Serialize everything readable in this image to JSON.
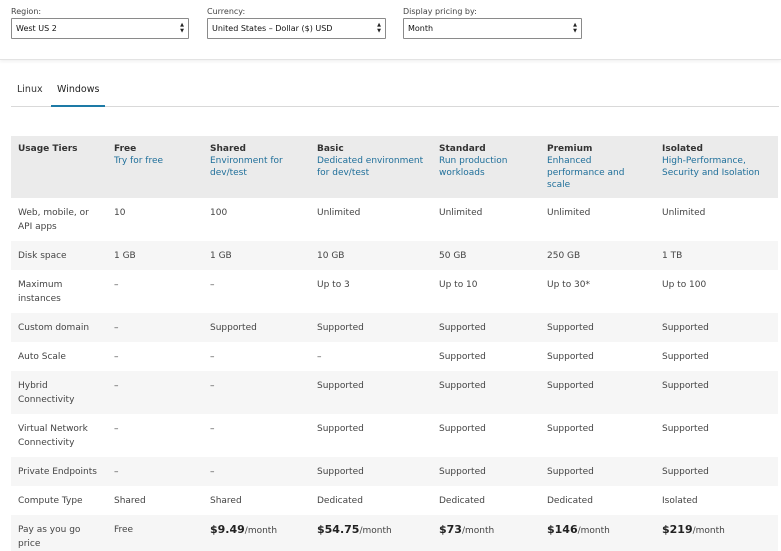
{
  "filters": {
    "region": {
      "label": "Region:",
      "value": "West US 2"
    },
    "currency": {
      "label": "Currency:",
      "value": "United States – Dollar ($) USD"
    },
    "display": {
      "label": "Display pricing by:",
      "value": "Month"
    }
  },
  "tabs": [
    {
      "label": "Linux",
      "active": false
    },
    {
      "label": "Windows",
      "active": true
    }
  ],
  "table": {
    "header": {
      "usage": "Usage Tiers",
      "tiers": [
        {
          "name": "Free",
          "desc": "Try for free"
        },
        {
          "name": "Shared",
          "desc": "Environment for dev/test"
        },
        {
          "name": "Basic",
          "desc": "Dedicated environment for dev/test"
        },
        {
          "name": "Standard",
          "desc": "Run production workloads"
        },
        {
          "name": "Premium",
          "desc": "Enhanced performance and scale"
        },
        {
          "name": "Isolated",
          "desc": "High-Performance, Security and Isolation"
        }
      ]
    },
    "rows": [
      {
        "label": "Web, mobile, or API apps",
        "cells": [
          "10",
          "100",
          "Unlimited",
          "Unlimited",
          "Unlimited",
          "Unlimited"
        ]
      },
      {
        "label": "Disk space",
        "cells": [
          "1 GB",
          "1 GB",
          "10 GB",
          "50 GB",
          "250 GB",
          "1 TB"
        ]
      },
      {
        "label": "Maximum instances",
        "cells": [
          "–",
          "–",
          "Up to 3",
          "Up to 10",
          "Up to 30*",
          "Up to 100"
        ]
      },
      {
        "label": "Custom domain",
        "cells": [
          "–",
          "Supported",
          "Supported",
          "Supported",
          "Supported",
          "Supported"
        ]
      },
      {
        "label": "Auto Scale",
        "cells": [
          "–",
          "–",
          "–",
          "Supported",
          "Supported",
          "Supported"
        ]
      },
      {
        "label": "Hybrid Connectivity",
        "cells": [
          "–",
          "–",
          "Supported",
          "Supported",
          "Supported",
          "Supported"
        ]
      },
      {
        "label": "Virtual Network Connectivity",
        "cells": [
          "–",
          "–",
          "Supported",
          "Supported",
          "Supported",
          "Supported"
        ]
      },
      {
        "label": "Private Endpoints",
        "cells": [
          "–",
          "–",
          "Supported",
          "Supported",
          "Supported",
          "Supported"
        ]
      },
      {
        "label": "Compute Type",
        "cells": [
          "Shared",
          "Shared",
          "Dedicated",
          "Dedicated",
          "Dedicated",
          "Isolated"
        ]
      }
    ],
    "price_row": {
      "label": "Pay as you go price",
      "free": "Free",
      "prices": [
        {
          "amount": "$9.49",
          "unit": "/month"
        },
        {
          "amount": "$54.75",
          "unit": "/month"
        },
        {
          "amount": "$73",
          "unit": "/month"
        },
        {
          "amount": "$146",
          "unit": "/month"
        },
        {
          "amount": "$219",
          "unit": "/month"
        }
      ]
    }
  }
}
